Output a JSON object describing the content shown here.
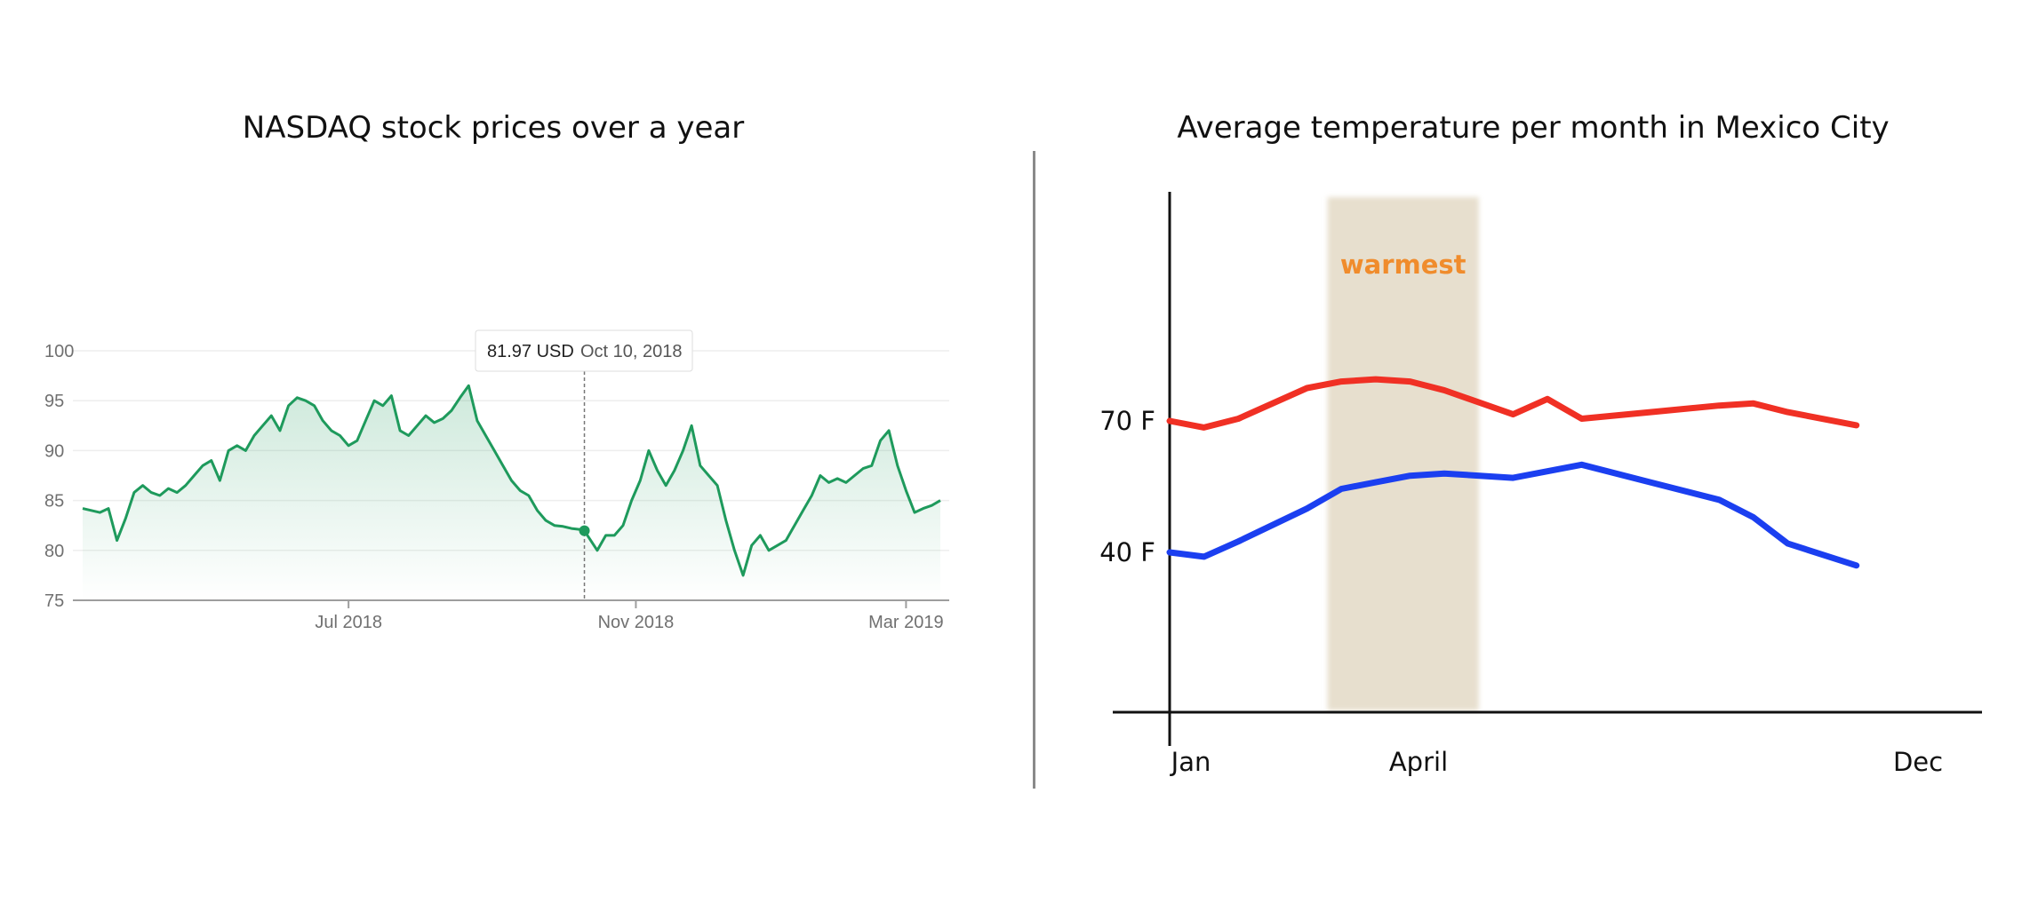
{
  "charts": [
    {
      "title": "NASDAQ stock prices over a year",
      "type": "area",
      "ylim": [
        75,
        100
      ],
      "yticks": [
        "100",
        "95",
        "90",
        "85",
        "80",
        "75"
      ],
      "ytick_values": [
        100,
        95,
        90,
        85,
        80,
        75
      ],
      "xticks": [
        "Jul 2018",
        "Nov 2018",
        "Mar 2019"
      ],
      "xtick_values": [
        0.31,
        0.645,
        0.96
      ],
      "tooltip": {
        "price": "81.97 USD",
        "date": "Oct 10, 2018",
        "value": 81.97,
        "x": 0.585
      },
      "line_color": "#1e9a5c",
      "series": [
        {
          "x": [
            0.0,
            0.02,
            0.03,
            0.04,
            0.05,
            0.06,
            0.07,
            0.08,
            0.09,
            0.1,
            0.11,
            0.12,
            0.13,
            0.14,
            0.15,
            0.16,
            0.17,
            0.18,
            0.19,
            0.2,
            0.21,
            0.22,
            0.23,
            0.24,
            0.25,
            0.26,
            0.27,
            0.28,
            0.29,
            0.3,
            0.31,
            0.32,
            0.33,
            0.34,
            0.35,
            0.36,
            0.37,
            0.38,
            0.39,
            0.4,
            0.41,
            0.42,
            0.43,
            0.44,
            0.45,
            0.46,
            0.47,
            0.48,
            0.49,
            0.5,
            0.51,
            0.52,
            0.53,
            0.54,
            0.55,
            0.56,
            0.57,
            0.58,
            0.585,
            0.6,
            0.61,
            0.62,
            0.63,
            0.64,
            0.65,
            0.66,
            0.67,
            0.68,
            0.69,
            0.7,
            0.71,
            0.72,
            0.73,
            0.74,
            0.75,
            0.76,
            0.77,
            0.78,
            0.79,
            0.8,
            0.81,
            0.82,
            0.83,
            0.84,
            0.85,
            0.86,
            0.87,
            0.88,
            0.89,
            0.9,
            0.91,
            0.92,
            0.93,
            0.94,
            0.95,
            0.96,
            0.97,
            0.98,
            0.99,
            1.0
          ],
          "values": [
            84.2,
            83.8,
            84.2,
            81,
            83.2,
            85.8,
            86.5,
            85.8,
            85.5,
            86.2,
            85.8,
            86.5,
            87.5,
            88.5,
            89,
            87,
            90,
            90.5,
            90,
            91.5,
            92.5,
            93.5,
            92,
            94.5,
            95.3,
            95,
            94.5,
            93,
            92,
            91.5,
            90.5,
            91,
            93,
            95,
            94.5,
            95.5,
            92,
            91.5,
            92.5,
            93.5,
            92.8,
            93.2,
            94,
            95.3,
            96.5,
            93,
            91.5,
            90,
            88.5,
            87,
            86,
            85.5,
            84,
            83,
            82.5,
            82.4,
            82.2,
            82.1,
            81.97,
            80,
            81.5,
            81.5,
            82.5,
            85,
            87,
            90,
            88,
            86.5,
            88,
            90,
            92.5,
            88.5,
            87.5,
            86.5,
            83,
            80,
            77.5,
            80.5,
            81.5,
            80,
            80.5,
            81,
            82.5,
            84,
            85.5,
            87.5,
            86.8,
            87.2,
            86.8,
            87.5,
            88.2,
            88.5,
            91,
            92,
            88.5,
            86,
            83.8,
            84.2,
            84.5,
            85
          ]
        }
      ]
    },
    {
      "title": "Average temperature per month in Mexico City",
      "type": "line",
      "x_start_label": "Jan",
      "x_mid_label": "April",
      "x_end_label": "Dec",
      "ytick_labels": [
        "70 F",
        "40 F"
      ],
      "ytick_values": [
        70,
        40
      ],
      "ylim": [
        0,
        120
      ],
      "xlim": [
        1,
        12
      ],
      "highlight": {
        "label": "warmest",
        "from_month": 3.3,
        "to_month": 5.5,
        "color": "#f08c2c",
        "band_color": "#e7dfce"
      },
      "series": [
        {
          "color": "#f03024",
          "x": [
            1,
            1.5,
            2,
            3,
            3.5,
            4,
            4.5,
            5,
            6,
            6.5,
            7,
            8,
            9,
            9.5,
            10,
            11
          ],
          "values": [
            70,
            68.5,
            70.5,
            77.5,
            79,
            79.5,
            79,
            77,
            71.5,
            75,
            70.5,
            72,
            73.5,
            74,
            72,
            69
          ]
        },
        {
          "color": "#1b3ff0",
          "x": [
            1,
            1.5,
            2,
            3,
            3.5,
            4,
            4.5,
            5,
            6,
            7,
            8,
            9,
            9.5,
            10,
            11
          ],
          "values": [
            40,
            39,
            42.5,
            50,
            54.5,
            56,
            57.5,
            58,
            57,
            60,
            56,
            52,
            48,
            42,
            37
          ]
        }
      ]
    }
  ]
}
